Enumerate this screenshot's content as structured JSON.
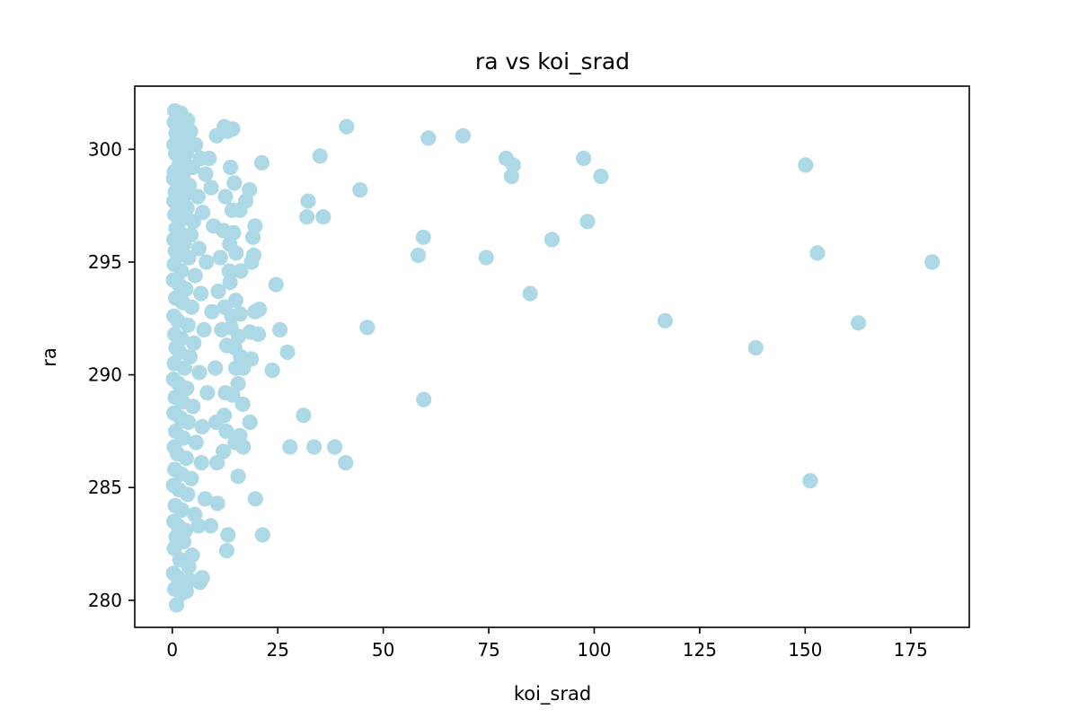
{
  "chart_data": {
    "type": "scatter",
    "title": "ra vs koi_srad",
    "xlabel": "koi_srad",
    "ylabel": "ra",
    "xlim": [
      -8.9,
      188.9
    ],
    "ylim": [
      278.8,
      302.8
    ],
    "xticks": [
      0,
      25,
      50,
      75,
      100,
      125,
      150,
      175
    ],
    "yticks": [
      280,
      285,
      290,
      295,
      300
    ],
    "marker_color": "#add8e6",
    "grid": false,
    "series": [
      {
        "points": [
          [
            0.6,
            301.7
          ],
          [
            1.2,
            301.5
          ],
          [
            2.0,
            301.6
          ],
          [
            2.6,
            301.3
          ],
          [
            3.6,
            301.3
          ],
          [
            0.5,
            301.2
          ],
          [
            1.7,
            301.0
          ],
          [
            4.3,
            300.8
          ],
          [
            0.9,
            300.7
          ],
          [
            2.9,
            300.4
          ],
          [
            0.4,
            300.2
          ],
          [
            1.4,
            300.0
          ],
          [
            5.5,
            300.2
          ],
          [
            0.8,
            299.8
          ],
          [
            2.2,
            299.6
          ],
          [
            3.3,
            299.8
          ],
          [
            6.7,
            299.6
          ],
          [
            8.7,
            299.6
          ],
          [
            1.6,
            299.3
          ],
          [
            4.8,
            299.2
          ],
          [
            0.5,
            299.0
          ],
          [
            2.6,
            298.9
          ],
          [
            7.9,
            298.9
          ],
          [
            0.3,
            298.7
          ],
          [
            1.9,
            298.5
          ],
          [
            4.0,
            298.4
          ],
          [
            9.2,
            298.3
          ],
          [
            0.7,
            298.1
          ],
          [
            2.7,
            297.9
          ],
          [
            6.1,
            297.9
          ],
          [
            0.4,
            297.7
          ],
          [
            1.5,
            297.4
          ],
          [
            3.5,
            297.4
          ],
          [
            7.2,
            297.2
          ],
          [
            0.6,
            297.1
          ],
          [
            2.3,
            296.9
          ],
          [
            5.0,
            296.8
          ],
          [
            9.8,
            296.6
          ],
          [
            0.9,
            296.5
          ],
          [
            1.8,
            296.3
          ],
          [
            4.4,
            296.2
          ],
          [
            0.4,
            296.0
          ],
          [
            2.8,
            295.8
          ],
          [
            6.3,
            295.6
          ],
          [
            0.7,
            295.5
          ],
          [
            1.4,
            295.3
          ],
          [
            3.9,
            295.2
          ],
          [
            8.1,
            295.0
          ],
          [
            0.5,
            294.9
          ],
          [
            2.1,
            294.6
          ],
          [
            5.4,
            294.4
          ],
          [
            0.3,
            294.2
          ],
          [
            1.6,
            294.0
          ],
          [
            3.2,
            293.8
          ],
          [
            6.8,
            293.6
          ],
          [
            0.8,
            293.4
          ],
          [
            2.5,
            293.2
          ],
          [
            4.6,
            293.0
          ],
          [
            9.4,
            292.8
          ],
          [
            0.4,
            292.6
          ],
          [
            1.3,
            292.4
          ],
          [
            3.7,
            292.2
          ],
          [
            7.5,
            292.0
          ],
          [
            0.6,
            291.8
          ],
          [
            2.2,
            291.6
          ],
          [
            5.1,
            291.4
          ],
          [
            0.9,
            291.2
          ],
          [
            1.7,
            291.0
          ],
          [
            4.2,
            290.8
          ],
          [
            0.5,
            290.5
          ],
          [
            2.9,
            290.3
          ],
          [
            6.4,
            290.1
          ],
          [
            0.3,
            289.8
          ],
          [
            1.5,
            289.6
          ],
          [
            3.4,
            289.4
          ],
          [
            8.3,
            289.2
          ],
          [
            0.7,
            289.0
          ],
          [
            2.4,
            288.8
          ],
          [
            4.9,
            288.6
          ],
          [
            0.4,
            288.3
          ],
          [
            1.9,
            288.1
          ],
          [
            3.8,
            287.9
          ],
          [
            7.1,
            287.7
          ],
          [
            0.8,
            287.5
          ],
          [
            2.6,
            287.2
          ],
          [
            5.6,
            287.0
          ],
          [
            0.5,
            286.8
          ],
          [
            1.2,
            286.5
          ],
          [
            3.3,
            286.3
          ],
          [
            6.9,
            286.1
          ],
          [
            0.6,
            285.8
          ],
          [
            2.1,
            285.6
          ],
          [
            4.5,
            285.4
          ],
          [
            0.3,
            285.1
          ],
          [
            1.6,
            284.9
          ],
          [
            3.6,
            284.7
          ],
          [
            7.8,
            284.5
          ],
          [
            0.7,
            284.2
          ],
          [
            2.3,
            284.0
          ],
          [
            5.3,
            283.8
          ],
          [
            0.4,
            283.5
          ],
          [
            1.4,
            283.3
          ],
          [
            3.1,
            283.1
          ],
          [
            6.2,
            283.3
          ],
          [
            0.9,
            282.8
          ],
          [
            2.7,
            282.6
          ],
          [
            4.7,
            282.0
          ],
          [
            0.5,
            282.3
          ],
          [
            1.8,
            281.8
          ],
          [
            3.9,
            281.5
          ],
          [
            0.3,
            281.2
          ],
          [
            1.3,
            281.0
          ],
          [
            2.8,
            280.7
          ],
          [
            4.1,
            280.9
          ],
          [
            0.6,
            280.5
          ],
          [
            2.2,
            280.3
          ],
          [
            3.3,
            280.4
          ],
          [
            1.0,
            279.8
          ],
          [
            7.1,
            281.0
          ],
          [
            6.5,
            280.8
          ],
          [
            10.5,
            300.6
          ],
          [
            12.3,
            301.0
          ],
          [
            13.1,
            300.8
          ],
          [
            14.3,
            300.9
          ],
          [
            13.8,
            299.2
          ],
          [
            14.7,
            298.5
          ],
          [
            18.3,
            298.2
          ],
          [
            12.6,
            297.9
          ],
          [
            17.4,
            297.7
          ],
          [
            14.2,
            297.3
          ],
          [
            16.0,
            297.3
          ],
          [
            19.6,
            296.6
          ],
          [
            12.1,
            296.4
          ],
          [
            14.5,
            296.3
          ],
          [
            19.1,
            296.1
          ],
          [
            13.6,
            295.8
          ],
          [
            15.1,
            295.4
          ],
          [
            18.8,
            295.0
          ],
          [
            19.3,
            295.3
          ],
          [
            11.4,
            295.2
          ],
          [
            13.5,
            294.6
          ],
          [
            16.2,
            294.6
          ],
          [
            13.7,
            294.1
          ],
          [
            10.9,
            293.7
          ],
          [
            15.0,
            293.3
          ],
          [
            12.4,
            293.0
          ],
          [
            14.1,
            292.6
          ],
          [
            16.1,
            292.7
          ],
          [
            19.6,
            292.8
          ],
          [
            20.6,
            292.9
          ],
          [
            11.7,
            292.0
          ],
          [
            13.9,
            292.1
          ],
          [
            15.7,
            291.7
          ],
          [
            18.4,
            291.9
          ],
          [
            20.4,
            291.8
          ],
          [
            14.8,
            291.2
          ],
          [
            12.9,
            291.3
          ],
          [
            16.2,
            290.8
          ],
          [
            18.7,
            290.7
          ],
          [
            15.1,
            290.3
          ],
          [
            16.8,
            290.3
          ],
          [
            10.2,
            290.3
          ],
          [
            12.6,
            289.2
          ],
          [
            14.3,
            289.1
          ],
          [
            15.6,
            289.6
          ],
          [
            16.7,
            288.7
          ],
          [
            12.3,
            288.2
          ],
          [
            10.4,
            287.9
          ],
          [
            18.4,
            287.9
          ],
          [
            12.8,
            287.5
          ],
          [
            16.0,
            287.3
          ],
          [
            14.9,
            287.0
          ],
          [
            16.8,
            286.8
          ],
          [
            12.1,
            286.6
          ],
          [
            10.6,
            286.1
          ],
          [
            15.6,
            285.5
          ],
          [
            19.7,
            284.5
          ],
          [
            10.7,
            284.3
          ],
          [
            9.1,
            283.3
          ],
          [
            13.2,
            282.9
          ],
          [
            12.9,
            282.2
          ],
          [
            21.2,
            299.4
          ],
          [
            21.4,
            282.9
          ],
          [
            24.6,
            294.0
          ],
          [
            25.5,
            292.0
          ],
          [
            23.7,
            290.2
          ],
          [
            27.3,
            291.0
          ],
          [
            31.1,
            288.2
          ],
          [
            27.9,
            286.8
          ],
          [
            33.6,
            286.8
          ],
          [
            32.2,
            297.7
          ],
          [
            31.9,
            297.0
          ],
          [
            35.0,
            299.7
          ],
          [
            35.8,
            297.0
          ],
          [
            38.5,
            286.8
          ],
          [
            41.1,
            286.1
          ],
          [
            41.3,
            301.0
          ],
          [
            44.5,
            298.2
          ],
          [
            46.2,
            292.1
          ],
          [
            58.3,
            295.3
          ],
          [
            59.5,
            296.1
          ],
          [
            59.6,
            288.9
          ],
          [
            60.7,
            300.5
          ],
          [
            68.9,
            300.6
          ],
          [
            74.4,
            295.2
          ],
          [
            79.1,
            299.6
          ],
          [
            80.4,
            298.8
          ],
          [
            80.8,
            299.3
          ],
          [
            84.8,
            293.6
          ],
          [
            90.0,
            296.0
          ],
          [
            97.5,
            299.6
          ],
          [
            98.4,
            296.8
          ],
          [
            101.6,
            298.8
          ],
          [
            116.8,
            292.4
          ],
          [
            138.3,
            291.2
          ],
          [
            150.1,
            299.3
          ],
          [
            151.2,
            285.3
          ],
          [
            152.9,
            295.4
          ],
          [
            162.6,
            292.3
          ],
          [
            180.1,
            295.0
          ]
        ]
      }
    ]
  }
}
